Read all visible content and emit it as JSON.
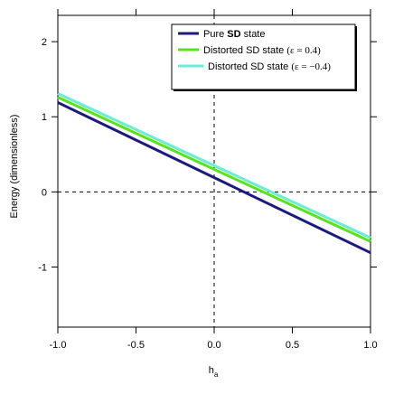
{
  "chart_data": {
    "type": "line",
    "xlabel": "h",
    "xlabel_sub": "a",
    "ylabel": "Energy (dimensionless)",
    "xlim": [
      -1.0,
      1.0
    ],
    "ylim": [
      -1.8,
      2.35
    ],
    "xticks": [
      -1.0,
      -0.5,
      0.0,
      0.5,
      1.0
    ],
    "xtick_labels": [
      "-1.0",
      "-0.5",
      "0.0",
      "0.5",
      "1.0"
    ],
    "yticks": [
      -1,
      0,
      1,
      2
    ],
    "ytick_labels": [
      "-1",
      "0",
      "1",
      "2"
    ],
    "reference_lines": {
      "x": 0,
      "y": 0,
      "style": "dashed"
    },
    "legend_position": "top-right",
    "series": [
      {
        "name_prefix": "Pure ",
        "name_bold": "SD",
        "name_suffix": " state",
        "color": "#1a1a80",
        "x": [
          -1.0,
          1.0
        ],
        "y": [
          1.19,
          -0.81
        ]
      },
      {
        "name_prefix": "Distorted SD state ",
        "name_eps": "(ε = 0.4)",
        "color": "#55e61a",
        "x": [
          -1.0,
          1.0
        ],
        "y": [
          1.26,
          -0.66
        ]
      },
      {
        "name_prefix": "Distorted SD state ",
        "name_eps": "(ε = −0.4)",
        "color": "#70ead8",
        "x": [
          -1.0,
          1.0
        ],
        "y": [
          1.31,
          -0.61
        ]
      }
    ]
  }
}
